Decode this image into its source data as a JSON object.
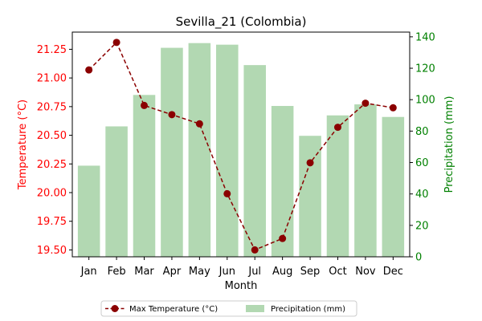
{
  "chart_data": {
    "type": "bar+line",
    "title": "Sevilla_21 (Colombia)",
    "xlabel": "Month",
    "categories": [
      "Jan",
      "Feb",
      "Mar",
      "Apr",
      "May",
      "Jun",
      "Jul",
      "Aug",
      "Sep",
      "Oct",
      "Nov",
      "Dec"
    ],
    "series": [
      {
        "name": "Max Temperature (°C)",
        "type": "line",
        "axis": "left",
        "color": "#8b0000",
        "values": [
          21.07,
          21.31,
          20.76,
          20.68,
          20.6,
          19.99,
          19.5,
          19.6,
          20.26,
          20.57,
          20.78,
          20.74
        ]
      },
      {
        "name": "Precipitation (mm)",
        "type": "bar",
        "axis": "right",
        "color": "#b2d8b2",
        "values": [
          58,
          83,
          103,
          133,
          136,
          135,
          122,
          96,
          77,
          90,
          97,
          89
        ]
      }
    ],
    "left_axis": {
      "label": "Temperature (°C)",
      "color": "#ff0000",
      "ylim": [
        19.44,
        21.4
      ],
      "ticks": [
        "19.50",
        "19.75",
        "20.00",
        "20.25",
        "20.50",
        "20.75",
        "21.00",
        "21.25"
      ]
    },
    "right_axis": {
      "label": "Precipitation (mm)",
      "color": "#008000",
      "ylim": [
        0,
        143
      ],
      "ticks": [
        "0",
        "20",
        "40",
        "60",
        "80",
        "100",
        "120",
        "140"
      ]
    },
    "grid": false,
    "legend": {
      "placement": "bottom-center",
      "entries": [
        "Max Temperature (°C)",
        "Precipitation (mm)"
      ]
    }
  }
}
